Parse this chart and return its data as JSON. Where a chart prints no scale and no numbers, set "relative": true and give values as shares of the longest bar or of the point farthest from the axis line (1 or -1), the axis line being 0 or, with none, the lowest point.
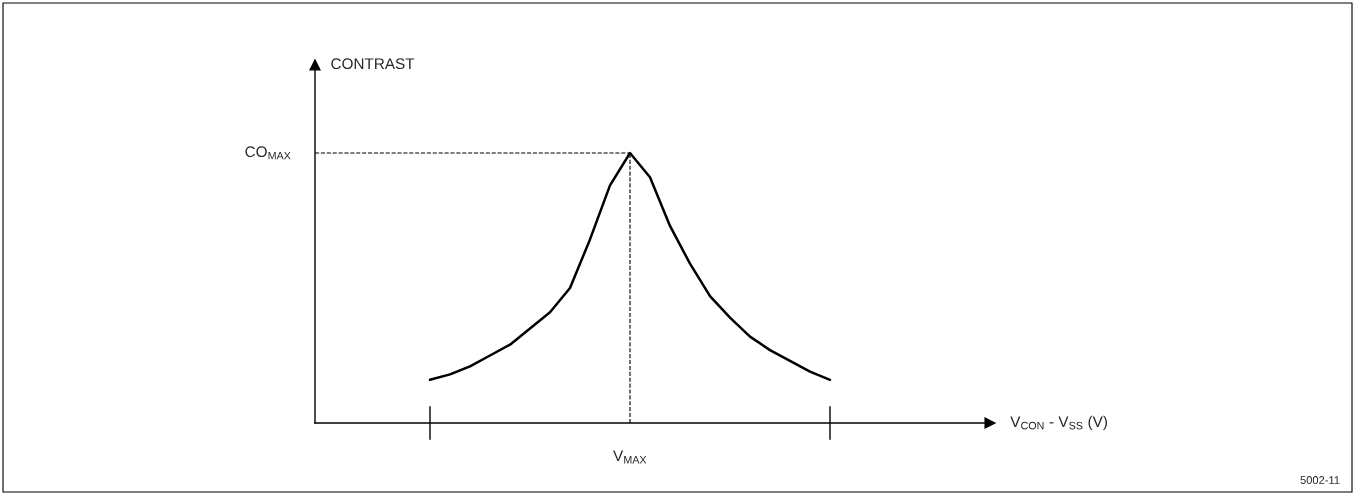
{
  "chart_data": {
    "type": "line",
    "relative": true,
    "color": "#000000",
    "line_style": "solid",
    "marker": "none",
    "grid": false,
    "categories": [
      null,
      null,
      null,
      null,
      null,
      null,
      null,
      null,
      null,
      null,
      null,
      null,
      null,
      null,
      null,
      null,
      null,
      null,
      null,
      null,
      null
    ],
    "values": [
      0.16,
      0.18,
      0.21,
      0.25,
      0.29,
      0.35,
      0.41,
      0.5,
      0.68,
      0.88,
      1,
      0.91,
      0.73,
      0.59,
      0.47,
      0.39,
      0.32,
      0.27,
      0.23,
      0.19,
      0.16
    ],
    "ref_lines": [
      {
        "axis": "y",
        "value": 1,
        "label": "CO$_{MAX}$",
        "line_style": "dashed"
      }
    ],
    "annotations": [
      "CONTRAST",
      "V$_{CON}$ - V$_{SS}$ (V)",
      "V$_{MAX}$",
      "5002-11"
    ]
  }
}
